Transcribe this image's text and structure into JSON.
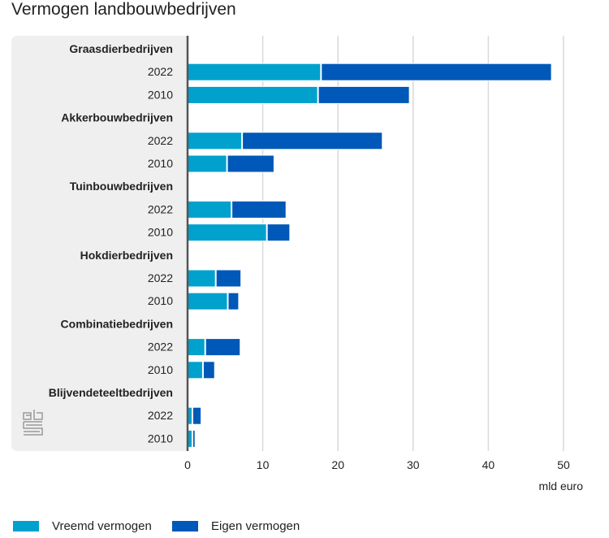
{
  "chart_data": {
    "type": "bar",
    "orientation": "horizontal",
    "stacked": true,
    "title": "Vermogen landbouwbedrijven",
    "xlabel": "mld euro",
    "xlim": [
      0,
      50
    ],
    "xticks": [
      0,
      10,
      20,
      30,
      40,
      50
    ],
    "grid": true,
    "legend_position": "bottom-left",
    "groups": [
      {
        "name": "Graasdierbedrijven",
        "rows": [
          {
            "label": "2022",
            "values": [
              17.8,
              30.7
            ]
          },
          {
            "label": "2010",
            "values": [
              17.4,
              12.2
            ]
          }
        ]
      },
      {
        "name": "Akkerbouwbedrijven",
        "rows": [
          {
            "label": "2022",
            "values": [
              7.3,
              18.7
            ]
          },
          {
            "label": "2010",
            "values": [
              5.3,
              6.3
            ]
          }
        ]
      },
      {
        "name": "Tuinbouwbedrijven",
        "rows": [
          {
            "label": "2022",
            "values": [
              5.9,
              7.3
            ]
          },
          {
            "label": "2010",
            "values": [
              10.6,
              3.1
            ]
          }
        ]
      },
      {
        "name": "Hokdierbedrijven",
        "rows": [
          {
            "label": "2022",
            "values": [
              3.8,
              3.4
            ]
          },
          {
            "label": "2010",
            "values": [
              5.4,
              1.5
            ]
          }
        ]
      },
      {
        "name": "Combinatiebedrijven",
        "rows": [
          {
            "label": "2022",
            "values": [
              2.4,
              4.7
            ]
          },
          {
            "label": "2010",
            "values": [
              2.1,
              1.6
            ]
          }
        ]
      },
      {
        "name": "Blijvendeteeltbedrijven",
        "rows": [
          {
            "label": "2022",
            "values": [
              0.7,
              1.2
            ]
          },
          {
            "label": "2010",
            "values": [
              0.7,
              0.4
            ]
          }
        ]
      }
    ],
    "series": [
      {
        "name": "Vreemd vermogen",
        "color": "#00a1cd"
      },
      {
        "name": "Eigen vermogen",
        "color": "#0058b8"
      }
    ]
  },
  "logo": "cbs-logo"
}
